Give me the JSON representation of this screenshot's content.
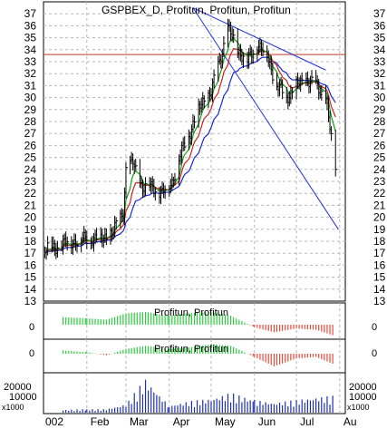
{
  "chart_data": [
    {
      "type": "ohlc",
      "title": "GSPBEX_D, Profitun, Profitun, Profitun",
      "xlabel": "",
      "ylabel": "",
      "ylim": [
        13,
        38
      ],
      "y_ticks": [
        13,
        14,
        15,
        16,
        17,
        18,
        19,
        20,
        21,
        22,
        23,
        24,
        25,
        26,
        27,
        28,
        29,
        30,
        31,
        32,
        33,
        34,
        35,
        36,
        37
      ],
      "x_ticks": [
        "002",
        "Feb",
        "Mar",
        "Apr",
        "May",
        "Jun",
        "Jul",
        "Au"
      ],
      "grid": true,
      "horizontal_line": {
        "value": 33.6,
        "color": "#c0392b"
      },
      "trendlines": [
        {
          "from": [
            "2002-04-18",
            37.5
          ],
          "to": [
            "2002-07-31",
            19.0
          ]
        },
        {
          "from": [
            "2002-04-18",
            37.5
          ],
          "to": [
            "2002-07-22",
            32.3
          ]
        }
      ],
      "price_series": [
        {
          "date": "2002-01-02",
          "close": 17.3
        },
        {
          "date": "2002-01-09",
          "close": 17.5
        },
        {
          "date": "2002-01-16",
          "close": 17.8
        },
        {
          "date": "2002-01-23",
          "close": 18.0
        },
        {
          "date": "2002-01-30",
          "close": 18.2
        },
        {
          "date": "2002-02-06",
          "close": 18.2
        },
        {
          "date": "2002-02-13",
          "close": 18.3
        },
        {
          "date": "2002-02-20",
          "close": 18.8
        },
        {
          "date": "2002-02-27",
          "close": 20.5
        },
        {
          "date": "2002-03-01",
          "close": 24.0
        },
        {
          "date": "2002-03-06",
          "close": 24.5
        },
        {
          "date": "2002-03-13",
          "close": 22.5
        },
        {
          "date": "2002-03-20",
          "close": 22.5
        },
        {
          "date": "2002-03-27",
          "close": 22.0
        },
        {
          "date": "2002-04-03",
          "close": 23.0
        },
        {
          "date": "2002-04-10",
          "close": 25.5
        },
        {
          "date": "2002-04-17",
          "close": 27.5
        },
        {
          "date": "2002-04-24",
          "close": 29.5
        },
        {
          "date": "2002-05-01",
          "close": 30.5
        },
        {
          "date": "2002-05-08",
          "close": 33.5
        },
        {
          "date": "2002-05-13",
          "close": 35.8
        },
        {
          "date": "2002-05-20",
          "close": 34.0
        },
        {
          "date": "2002-05-27",
          "close": 33.0
        },
        {
          "date": "2002-06-03",
          "close": 34.5
        },
        {
          "date": "2002-06-10",
          "close": 33.5
        },
        {
          "date": "2002-06-17",
          "close": 31.0
        },
        {
          "date": "2002-06-24",
          "close": 30.0
        },
        {
          "date": "2002-07-01",
          "close": 31.0
        },
        {
          "date": "2002-07-08",
          "close": 31.5
        },
        {
          "date": "2002-07-15",
          "close": 31.0
        },
        {
          "date": "2002-07-22",
          "close": 30.0
        },
        {
          "date": "2002-07-29",
          "close": 24.0
        }
      ]
    },
    {
      "type": "bar",
      "title": "Profitun, Profitun",
      "y_ticks": [
        0
      ],
      "bar_colors": {
        "positive": "#2ecc40",
        "negative": "#e74c3c"
      },
      "x": [
        "2002-01-15",
        "2002-02-01",
        "2002-02-15",
        "2002-03-01",
        "2002-03-15",
        "2002-04-01",
        "2002-04-15",
        "2002-05-01",
        "2002-05-15",
        "2002-06-01",
        "2002-06-15",
        "2002-07-01",
        "2002-07-15",
        "2002-07-29"
      ],
      "values": [
        0.6,
        0.5,
        0.4,
        0.9,
        1.0,
        0.7,
        0.9,
        1.0,
        0.7,
        -0.2,
        -0.6,
        -0.3,
        -0.4,
        -0.9
      ]
    },
    {
      "type": "bar",
      "title": "Profitun, Profitun",
      "y_ticks": [
        0
      ],
      "bar_colors": {
        "positive": "#2ecc40",
        "negative": "#e74c3c"
      },
      "x": [
        "2002-01-15",
        "2002-02-01",
        "2002-02-15",
        "2002-03-01",
        "2002-03-15",
        "2002-04-01",
        "2002-04-15",
        "2002-05-01",
        "2002-05-15",
        "2002-06-01",
        "2002-06-15",
        "2002-07-01",
        "2002-07-15",
        "2002-07-29"
      ],
      "values": [
        0.2,
        0.1,
        -0.1,
        0.3,
        0.5,
        0.3,
        0.4,
        0.6,
        0.5,
        -0.2,
        -0.8,
        -0.3,
        -0.2,
        -0.7
      ]
    },
    {
      "type": "bar",
      "title": "",
      "unit_label": "x1000",
      "y_ticks": [
        10000,
        20000
      ],
      "bar_color": "#1f2fb0",
      "x": [
        "2002-01-15",
        "2002-02-01",
        "2002-02-15",
        "2002-03-01",
        "2002-03-15",
        "2002-04-01",
        "2002-04-15",
        "2002-05-01",
        "2002-05-15",
        "2002-06-01",
        "2002-06-15",
        "2002-07-01",
        "2002-07-15",
        "2002-07-29"
      ],
      "values": [
        2000,
        2500,
        2500,
        6000,
        24000,
        5000,
        8000,
        10000,
        14000,
        9000,
        7000,
        9000,
        11000,
        12000
      ]
    }
  ],
  "colors": {
    "price_bars": "#000000",
    "ma_fast": "#16a016",
    "ma_mid": "#d02020",
    "ma_slow": "#1a28d8",
    "trendline": "#2030e0",
    "grid": "#b8b8b8"
  }
}
